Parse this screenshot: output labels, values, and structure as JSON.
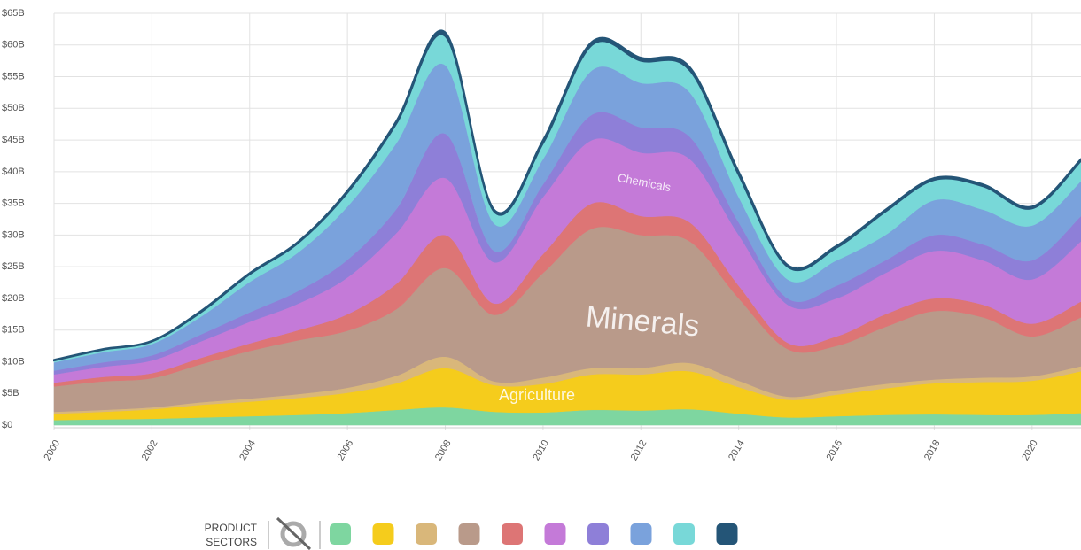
{
  "chart_data": {
    "type": "stacked_area",
    "x": [
      2000,
      2001,
      2002,
      2003,
      2004,
      2005,
      2006,
      2007,
      2008,
      2009,
      2010,
      2011,
      2012,
      2013,
      2014,
      2015,
      2016,
      2017,
      2018,
      2019,
      2020,
      2021
    ],
    "xlim": [
      2000,
      2021
    ],
    "xticks": [
      2000,
      2002,
      2004,
      2006,
      2008,
      2010,
      2012,
      2014,
      2016,
      2018,
      2020
    ],
    "ylim": [
      0,
      65
    ],
    "yticks": [
      {
        "value": 0,
        "label": "$0"
      },
      {
        "value": 5,
        "label": "$5B"
      },
      {
        "value": 10,
        "label": "$10B"
      },
      {
        "value": 15,
        "label": "$15B"
      },
      {
        "value": 20,
        "label": "$20B"
      },
      {
        "value": 25,
        "label": "$25B"
      },
      {
        "value": 30,
        "label": "$30B"
      },
      {
        "value": 35,
        "label": "$35B"
      },
      {
        "value": 40,
        "label": "$40B"
      },
      {
        "value": 45,
        "label": "$45B"
      },
      {
        "value": 50,
        "label": "$50B"
      },
      {
        "value": 55,
        "label": "$55B"
      },
      {
        "value": 60,
        "label": "$60B"
      },
      {
        "value": 65,
        "label": "$65B"
      }
    ],
    "grid": true,
    "series": [
      {
        "color": "#7ed6a0",
        "values": [
          0.8,
          0.9,
          1.0,
          1.2,
          1.4,
          1.6,
          1.9,
          2.4,
          2.8,
          2.1,
          2.0,
          2.4,
          2.3,
          2.5,
          1.8,
          1.2,
          1.4,
          1.6,
          1.7,
          1.6,
          1.6,
          1.9
        ]
      },
      {
        "name": "Agriculture",
        "color": "#f5cc1c",
        "values": [
          1.0,
          1.2,
          1.5,
          2.0,
          2.3,
          2.7,
          3.2,
          4.2,
          6.2,
          4.2,
          4.5,
          5.6,
          5.7,
          6.0,
          4.2,
          2.8,
          3.4,
          4.2,
          4.9,
          5.2,
          5.4,
          6.6
        ]
      },
      {
        "color": "#d9b77a",
        "values": [
          0.3,
          0.3,
          0.3,
          0.4,
          0.5,
          0.6,
          0.8,
          1.2,
          1.8,
          0.6,
          1.0,
          1.0,
          1.0,
          1.3,
          1.0,
          0.5,
          0.7,
          0.7,
          0.6,
          0.7,
          0.7,
          0.8
        ]
      },
      {
        "name": "Minerals",
        "color": "#b99a8a",
        "values": [
          4.0,
          4.5,
          4.6,
          6.0,
          7.5,
          8.5,
          9.0,
          10.5,
          14.0,
          10.5,
          16.5,
          22.0,
          21.0,
          19.2,
          13.0,
          7.5,
          7.0,
          9.0,
          10.8,
          9.5,
          6.3,
          7.7
        ]
      },
      {
        "color": "#dd7575",
        "values": [
          0.6,
          0.7,
          0.8,
          1.0,
          1.2,
          1.6,
          2.6,
          4.0,
          5.2,
          1.8,
          3.0,
          4.0,
          3.0,
          3.0,
          2.0,
          1.0,
          1.5,
          2.0,
          2.0,
          2.0,
          2.0,
          2.5
        ]
      },
      {
        "name": "Chemicals",
        "color": "#c47ad8",
        "values": [
          1.3,
          1.6,
          2.0,
          2.6,
          3.4,
          4.2,
          5.8,
          8.0,
          9.0,
          6.5,
          9.0,
          10.0,
          10.0,
          10.0,
          8.0,
          6.0,
          6.0,
          6.5,
          7.5,
          7.0,
          7.0,
          9.5
        ]
      },
      {
        "color": "#8e7fd8",
        "values": [
          0.6,
          0.7,
          0.8,
          1.1,
          1.5,
          2.0,
          2.8,
          3.8,
          7.0,
          1.8,
          2.0,
          4.0,
          4.0,
          3.5,
          2.0,
          1.0,
          2.0,
          2.0,
          2.5,
          2.5,
          3.0,
          4.0
        ]
      },
      {
        "color": "#7aa2dc",
        "values": [
          1.3,
          1.6,
          1.8,
          2.8,
          4.8,
          6.1,
          8.4,
          10.4,
          10.8,
          4.3,
          4.0,
          7.0,
          7.0,
          7.0,
          4.0,
          3.0,
          4.0,
          4.0,
          5.5,
          5.5,
          5.5,
          5.5
        ]
      },
      {
        "color": "#78d8d8",
        "values": [
          0.3,
          0.4,
          0.4,
          0.7,
          1.2,
          1.5,
          2.2,
          3.1,
          4.6,
          1.9,
          2.5,
          4.0,
          3.5,
          3.5,
          3.5,
          2.0,
          2.0,
          3.7,
          3.2,
          3.7,
          2.7,
          3.2
        ]
      },
      {
        "color": "#245577",
        "values": [
          0.1,
          0.1,
          0.1,
          0.2,
          0.2,
          0.2,
          0.3,
          0.4,
          0.6,
          0.3,
          0.5,
          0.5,
          0.5,
          0.5,
          0.5,
          0.3,
          0.3,
          0.3,
          0.3,
          0.3,
          0.3,
          0.3
        ]
      }
    ],
    "legend_title": [
      "PRODUCT",
      "SECTORS"
    ]
  }
}
